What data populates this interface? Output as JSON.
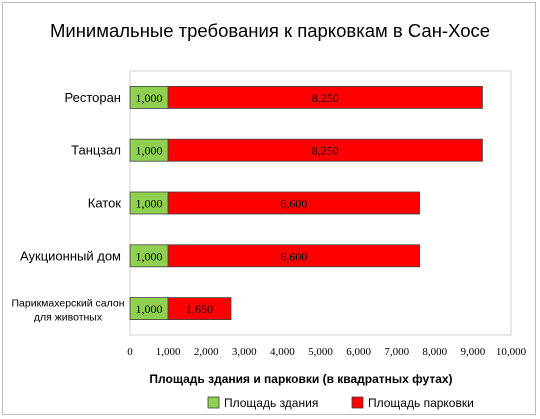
{
  "chart_data": {
    "type": "bar",
    "orientation": "horizontal",
    "stacked": true,
    "title": "Минимальные требования к парковкам в Сан-Хосе",
    "xlabel": "Площадь здания и парковки (в квадратных футах)",
    "ylabel": "",
    "categories": [
      "Ресторан",
      "Танцзал",
      "Каток",
      "Аукционный дом",
      "Парикмахерский салон для животных"
    ],
    "series": [
      {
        "name": "Площадь здания",
        "values": [
          1000,
          1000,
          1000,
          1000,
          1000
        ],
        "labels": [
          "1,000",
          "1,000",
          "1,000",
          "1,000",
          "1,000"
        ],
        "color": "#90d050"
      },
      {
        "name": "Площадь парковки",
        "values": [
          8250,
          8250,
          6600,
          6600,
          1650
        ],
        "labels": [
          "8,250",
          "8,250",
          "6,600",
          "6,600",
          "1,650"
        ],
        "color": "#ff0000"
      }
    ],
    "xlim": [
      0,
      10000
    ],
    "xticks": [
      "0",
      "1,000",
      "2,000",
      "3,000",
      "4,000",
      "5,000",
      "6,000",
      "7,000",
      "8,000",
      "9,000",
      "10,000"
    ],
    "grid": false,
    "legend_position": "bottom"
  }
}
